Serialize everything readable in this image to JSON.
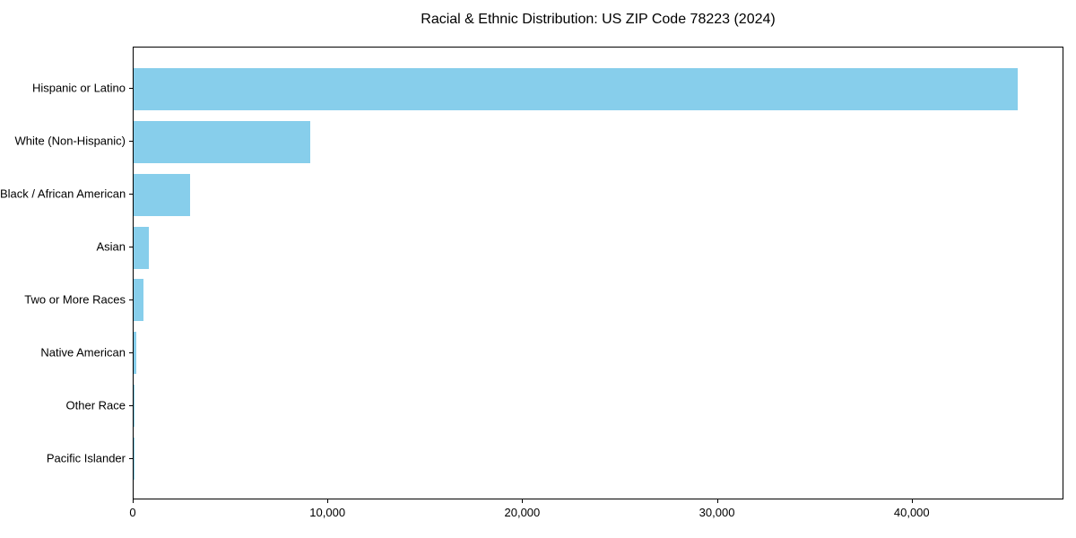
{
  "chart_data": {
    "type": "bar",
    "orientation": "horizontal",
    "title": "Racial & Ethnic Distribution: US ZIP Code 78223 (2024)",
    "categories": [
      "Hispanic or Latino",
      "White (Non-Hispanic)",
      "Black / African American",
      "Asian",
      "Two or More Races",
      "Native American",
      "Other Race",
      "Pacific Islander"
    ],
    "values": [
      45400,
      9050,
      2900,
      800,
      500,
      150,
      60,
      25
    ],
    "xlabel": "",
    "ylabel": "",
    "xlim": [
      0,
      47700
    ],
    "xticks": [
      0,
      10000,
      20000,
      30000,
      40000
    ],
    "xtick_labels": [
      "0",
      "10,000",
      "20,000",
      "30,000",
      "40,000"
    ],
    "bar_color": "#87CEEB",
    "text_color": "#000000",
    "spine_color": "#000000",
    "grid": false,
    "legend": "none"
  }
}
